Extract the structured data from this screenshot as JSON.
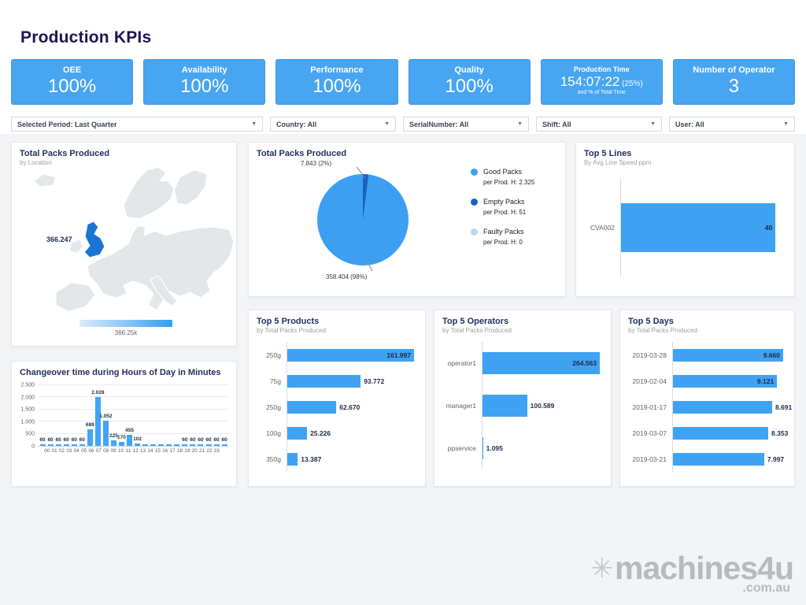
{
  "page": {
    "title": "Production KPIs"
  },
  "theme": {
    "kpi_bg": "#47a5f1",
    "accent": "#42a5f5",
    "bar_color": "#3fa2f3",
    "title_color": "#1c1653",
    "value_label_color": "#1e2a47"
  },
  "kpi_cards": [
    {
      "id": "oee",
      "label": "OEE",
      "value": "100%"
    },
    {
      "id": "availability",
      "label": "Availability",
      "value": "100%"
    },
    {
      "id": "performance",
      "label": "Performance",
      "value": "100%"
    },
    {
      "id": "quality",
      "label": "Quality",
      "value": "100%"
    },
    {
      "id": "production-time",
      "label": "Production Time",
      "value": "154:07:22",
      "suffix": "(25%)",
      "note": "and % of Total Time"
    },
    {
      "id": "number-of-operator",
      "label": "Number of Operator",
      "value": "3"
    }
  ],
  "filters": [
    {
      "id": "period",
      "label": "Selected Period: Last Quarter"
    },
    {
      "id": "country",
      "label": "Country: All"
    },
    {
      "id": "serialnumber",
      "label": "SerialNumber: All"
    },
    {
      "id": "shift",
      "label": "Shift: All"
    },
    {
      "id": "user",
      "label": "User: All"
    }
  ],
  "watermark": {
    "brand": "machines4u",
    "domain": ".com.au"
  },
  "chart_data": [
    {
      "id": "map",
      "type": "map",
      "title": "Total Packs Produced",
      "subtitle": "by Location",
      "region": "Europe",
      "highlighted_country": "United Kingdom",
      "data_label": "366.247",
      "scale_max_label": "366.25k",
      "highlight_color": "#1976d2"
    },
    {
      "id": "pie",
      "type": "pie",
      "title": "Total Packs Produced",
      "legend_position": "right",
      "slices": [
        {
          "name": "Good Packs",
          "detail": "per Prod. H: 2.325",
          "pct": 98,
          "label": "358.404 (98%)",
          "color": "#3d9ff2"
        },
        {
          "name": "Empty Packs",
          "detail": "per Prod. H: 51",
          "pct": 2,
          "label": "7.843 (2%)",
          "color": "#1565c0"
        },
        {
          "name": "Faulty Packs",
          "detail": "per Prod. H: 0",
          "pct": 0,
          "label": "",
          "color": "#b9d8f6"
        }
      ]
    },
    {
      "id": "top5lines",
      "type": "bar",
      "orientation": "horizontal",
      "title": "Top 5 Lines",
      "subtitle": "By Avg Line Speed ppm",
      "categories": [
        "CVA002"
      ],
      "values": [
        40
      ],
      "value_labels": [
        "40"
      ],
      "axis_max": 42
    },
    {
      "id": "changeover",
      "type": "bar",
      "orientation": "vertical",
      "title": "Changeover time during Hours of Day in Minutes",
      "categories": [
        "00",
        "01",
        "02",
        "03",
        "04",
        "05",
        "06",
        "07",
        "08",
        "09",
        "10",
        "11",
        "12",
        "13",
        "14",
        "15",
        "16",
        "17",
        "18",
        "19",
        "20",
        "21",
        "22",
        "23"
      ],
      "values": [
        60,
        60,
        60,
        60,
        60,
        60,
        689,
        2028,
        1052,
        225,
        170,
        455,
        102,
        60,
        60,
        60,
        60,
        60,
        60,
        60,
        60,
        60,
        60,
        60
      ],
      "value_labels": [
        "60",
        "60",
        "60",
        "60",
        "60",
        "60",
        "689",
        "2.028",
        "1.052",
        "225",
        "170",
        "455",
        "102",
        "",
        "",
        "",
        "",
        "",
        "60",
        "60",
        "60",
        "60",
        "60",
        "60"
      ],
      "y_tick_labels": [
        "0",
        "500",
        "1.000",
        "1.500",
        "2.000",
        "2.500"
      ],
      "ylim": [
        0,
        2500
      ],
      "grid": true
    },
    {
      "id": "top5products",
      "type": "bar",
      "orientation": "horizontal",
      "title": "Top 5 Products",
      "subtitle": "by Total Packs Produced",
      "categories": [
        "250g",
        "75g",
        "250g",
        "100g",
        "350g"
      ],
      "values": [
        161997,
        93772,
        62670,
        25226,
        13387
      ],
      "value_labels": [
        "161.997",
        "93.772",
        "62.670",
        "25.226",
        "13.387"
      ]
    },
    {
      "id": "top5operators",
      "type": "bar",
      "orientation": "horizontal",
      "title": "Top 5 Operators",
      "subtitle": "by Total Packs Produced",
      "categories": [
        "operator1",
        "manager1",
        "ppservice"
      ],
      "values": [
        264563,
        100589,
        1095
      ],
      "value_labels": [
        "264.563",
        "100.589",
        "1.095"
      ]
    },
    {
      "id": "top5days",
      "type": "bar",
      "orientation": "horizontal",
      "title": "Top 5 Days",
      "subtitle": "by Total Packs Produced",
      "categories": [
        "2019-03-28",
        "2019-02-04",
        "2019-01-17",
        "2019-03-07",
        "2019-03-21"
      ],
      "values": [
        9660,
        9121,
        8691,
        8353,
        7997
      ],
      "value_labels": [
        "9.660",
        "9.121",
        "8.691",
        "8.353",
        "7.997"
      ]
    }
  ]
}
